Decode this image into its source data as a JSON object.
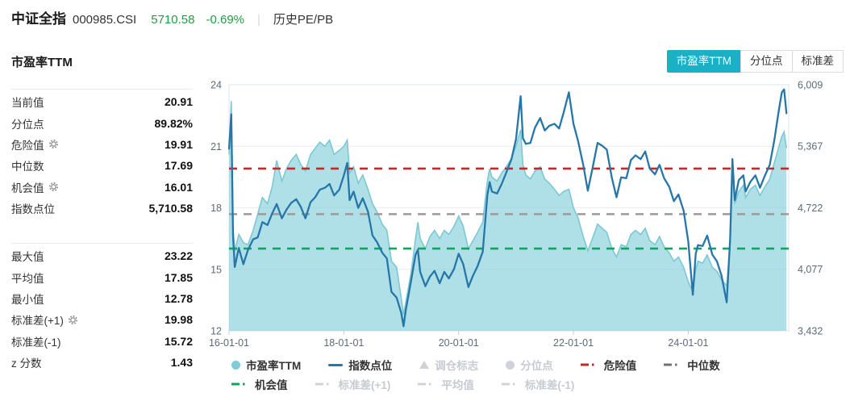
{
  "header": {
    "name": "中证全指",
    "code": "000985.CSI",
    "price": "5710.58",
    "change": "-0.69%",
    "separator": "|",
    "section": "历史PE/PB"
  },
  "tabs": [
    {
      "label": "市盈率TTM",
      "name": "pe-ttm",
      "active": true
    },
    {
      "label": "分位点",
      "name": "percentile",
      "active": false
    },
    {
      "label": "标准差",
      "name": "std-dev",
      "active": false
    }
  ],
  "panel": {
    "title": "市盈率TTM",
    "group1": [
      {
        "name": "current-value",
        "label": "当前值",
        "value": "20.91",
        "gear": false
      },
      {
        "name": "percentile",
        "label": "分位点",
        "value": "89.82%",
        "gear": false
      },
      {
        "name": "danger-value",
        "label": "危险值",
        "value": "19.91",
        "gear": true
      },
      {
        "name": "median",
        "label": "中位数",
        "value": "17.69",
        "gear": false
      },
      {
        "name": "opportunity-value",
        "label": "机会值",
        "value": "16.01",
        "gear": true
      },
      {
        "name": "index-points",
        "label": "指数点位",
        "value": "5,710.58",
        "gear": false
      }
    ],
    "group2": [
      {
        "name": "max-value",
        "label": "最大值",
        "value": "23.22",
        "gear": false
      },
      {
        "name": "mean-value",
        "label": "平均值",
        "value": "17.85",
        "gear": false
      },
      {
        "name": "min-value",
        "label": "最小值",
        "value": "12.78",
        "gear": false
      },
      {
        "name": "std-plus-1",
        "label": "标准差(+1)",
        "value": "19.98",
        "gear": true
      },
      {
        "name": "std-minus-1",
        "label": "标准差(-1)",
        "value": "15.72",
        "gear": false
      },
      {
        "name": "z-score",
        "label": "z 分数",
        "value": "1.43",
        "gear": false
      }
    ]
  },
  "legend": {
    "rows": [
      [
        {
          "label": "市盈率TTM",
          "name": "pe-ttm",
          "marker": "circle",
          "color": "#7fccd6",
          "enabled": true
        },
        {
          "label": "指数点位",
          "name": "index-points",
          "marker": "line",
          "color": "#2676a8",
          "enabled": true
        },
        {
          "label": "调仓标志",
          "name": "rebalance-marker",
          "marker": "triangle",
          "color": "#cfd3d9",
          "enabled": false
        },
        {
          "label": "分位点",
          "name": "percentile",
          "marker": "circle",
          "color": "#cfd3d9",
          "enabled": false
        },
        {
          "label": "危险值",
          "name": "danger-value",
          "marker": "dashdot",
          "color": "#c5282c",
          "enabled": true
        },
        {
          "label": "中位数",
          "name": "median",
          "marker": "dashdot",
          "color": "#6f7479",
          "enabled": true
        }
      ],
      [
        {
          "label": "机会值",
          "name": "opportunity-value",
          "marker": "dashdot",
          "color": "#13a45f",
          "enabled": true
        },
        {
          "label": "标准差(+1)",
          "name": "std-plus-1",
          "marker": "dashdot",
          "color": "#cfd3d9",
          "enabled": false
        },
        {
          "label": "平均值",
          "name": "mean-value",
          "marker": "dashdot",
          "color": "#cfd3d9",
          "enabled": false
        },
        {
          "label": "标准差(-1)",
          "name": "std-minus-1",
          "marker": "dashdot",
          "color": "#cfd3d9",
          "enabled": false
        }
      ]
    ]
  },
  "colors": {
    "accent_teal": "#1ab0c5",
    "quote_green": "#1f9d40",
    "area_fill": "#7ecdd8",
    "area_line": "#7cc8d3",
    "index_line": "#2676a8",
    "danger_red": "#c5282c",
    "median_gray": "#9b9b9b",
    "opportunity_green": "#13a45f",
    "grid": "#ececec",
    "plot_border": "#dbe6f1",
    "axis_text": "#5d6b78"
  },
  "chart_data": {
    "type": "area",
    "title": "市盈率TTM",
    "x_range": [
      2016.0,
      2025.75
    ],
    "x_ticks": [
      {
        "t": 2016,
        "label": "16-01-01"
      },
      {
        "t": 2018,
        "label": "18-01-01"
      },
      {
        "t": 2020,
        "label": "20-01-01"
      },
      {
        "t": 2022,
        "label": "22-01-01"
      },
      {
        "t": 2024,
        "label": "24-01-01"
      }
    ],
    "left_axis": {
      "range": [
        12,
        24
      ],
      "ticks": [
        24,
        21,
        18,
        15,
        12
      ]
    },
    "right_axis": {
      "range": [
        3432,
        6009
      ],
      "ticks": [
        {
          "v": 6009,
          "label": "6,009"
        },
        {
          "v": 5367,
          "label": "5,367"
        },
        {
          "v": 4722,
          "label": "4,722"
        },
        {
          "v": 4077,
          "label": "4,077"
        },
        {
          "v": 3432,
          "label": "3,432"
        }
      ]
    },
    "reference_lines": [
      {
        "name": "危险值",
        "value": 19.91,
        "color": "#c5282c"
      },
      {
        "name": "中位数",
        "value": 17.69,
        "color": "#9b9b9b"
      },
      {
        "name": "机会值",
        "value": 16.01,
        "color": "#13a45f"
      }
    ],
    "x": [
      2016.0,
      2016.04,
      2016.07,
      2016.1,
      2016.17,
      2016.25,
      2016.33,
      2016.42,
      2016.5,
      2016.58,
      2016.67,
      2016.75,
      2016.83,
      2016.92,
      2017.0,
      2017.08,
      2017.17,
      2017.25,
      2017.33,
      2017.42,
      2017.5,
      2017.58,
      2017.67,
      2017.75,
      2017.83,
      2017.92,
      2018.0,
      2018.06,
      2018.1,
      2018.17,
      2018.25,
      2018.33,
      2018.42,
      2018.5,
      2018.58,
      2018.67,
      2018.75,
      2018.83,
      2018.92,
      2019.0,
      2019.04,
      2019.08,
      2019.17,
      2019.25,
      2019.29,
      2019.33,
      2019.42,
      2019.5,
      2019.58,
      2019.67,
      2019.75,
      2019.83,
      2019.92,
      2020.0,
      2020.08,
      2020.17,
      2020.25,
      2020.33,
      2020.42,
      2020.5,
      2020.54,
      2020.58,
      2020.67,
      2020.75,
      2020.83,
      2020.92,
      2021.0,
      2021.08,
      2021.12,
      2021.17,
      2021.25,
      2021.33,
      2021.42,
      2021.5,
      2021.58,
      2021.67,
      2021.75,
      2021.83,
      2021.92,
      2022.0,
      2022.08,
      2022.17,
      2022.25,
      2022.33,
      2022.42,
      2022.5,
      2022.58,
      2022.67,
      2022.75,
      2022.83,
      2022.92,
      2023.0,
      2023.08,
      2023.17,
      2023.25,
      2023.33,
      2023.42,
      2023.5,
      2023.58,
      2023.67,
      2023.75,
      2023.83,
      2023.92,
      2024.0,
      2024.08,
      2024.13,
      2024.17,
      2024.25,
      2024.33,
      2024.42,
      2024.5,
      2024.58,
      2024.67,
      2024.73,
      2024.77,
      2024.81,
      2024.88,
      2024.96,
      2025.0,
      2025.08,
      2025.17,
      2025.25,
      2025.33,
      2025.42,
      2025.5,
      2025.58,
      2025.63,
      2025.67,
      2025.71
    ],
    "series": [
      {
        "name": "市盈率TTM",
        "type": "area",
        "axis": "left",
        "values": [
          20.6,
          23.2,
          17.0,
          15.9,
          16.7,
          16.3,
          16.2,
          16.9,
          17.7,
          18.5,
          18.2,
          19.0,
          20.3,
          19.3,
          19.9,
          20.3,
          20.6,
          20.1,
          19.8,
          20.6,
          20.9,
          21.2,
          21.0,
          21.3,
          20.6,
          20.8,
          21.0,
          21.3,
          19.7,
          20.0,
          19.2,
          19.6,
          18.9,
          18.2,
          17.8,
          17.2,
          16.9,
          15.4,
          15.1,
          13.6,
          12.8,
          13.4,
          14.8,
          16.5,
          17.3,
          16.5,
          16.0,
          16.6,
          16.9,
          16.5,
          16.9,
          16.7,
          17.1,
          17.6,
          17.1,
          16.0,
          16.4,
          16.8,
          17.3,
          19.3,
          19.9,
          19.5,
          19.3,
          19.7,
          20.0,
          20.4,
          21.0,
          21.8,
          20.1,
          19.6,
          19.4,
          19.8,
          20.0,
          19.4,
          19.2,
          18.9,
          18.6,
          18.8,
          18.9,
          18.0,
          17.5,
          16.6,
          15.9,
          16.5,
          17.2,
          17.0,
          16.8,
          16.0,
          15.6,
          16.2,
          16.1,
          16.7,
          16.9,
          16.7,
          17.0,
          16.4,
          16.2,
          16.6,
          16.1,
          15.8,
          15.4,
          15.6,
          15.1,
          14.4,
          13.9,
          15.0,
          15.4,
          15.3,
          15.7,
          15.1,
          14.9,
          14.5,
          14.2,
          16.2,
          19.8,
          18.2,
          18.8,
          19.1,
          18.5,
          18.9,
          19.1,
          18.6,
          19.0,
          19.4,
          20.2,
          21.0,
          21.5,
          21.7,
          20.91
        ]
      },
      {
        "name": "指数点位",
        "type": "line",
        "axis": "right",
        "values": [
          5340,
          5700,
          4420,
          4100,
          4300,
          4130,
          4280,
          4390,
          4410,
          4570,
          4540,
          4660,
          4760,
          4610,
          4700,
          4770,
          4810,
          4730,
          4610,
          4780,
          4830,
          4910,
          4930,
          4970,
          4850,
          4910,
          5060,
          5190,
          4800,
          4890,
          4720,
          4820,
          4680,
          4430,
          4360,
          4250,
          4190,
          3840,
          3780,
          3620,
          3480,
          3650,
          3950,
          4230,
          4280,
          4050,
          3900,
          4000,
          4060,
          3930,
          4050,
          3980,
          4080,
          4240,
          4130,
          3890,
          4010,
          4110,
          4260,
          4850,
          4990,
          4890,
          4870,
          4970,
          5090,
          5230,
          5440,
          5890,
          5450,
          5390,
          5400,
          5560,
          5660,
          5530,
          5580,
          5600,
          5550,
          5720,
          5930,
          5600,
          5420,
          5170,
          4900,
          5130,
          5400,
          5370,
          5330,
          5030,
          4830,
          5040,
          5030,
          5220,
          5270,
          5230,
          5310,
          5130,
          5070,
          5170,
          5030,
          4940,
          4790,
          4860,
          4690,
          4370,
          3810,
          4240,
          4330,
          4320,
          4430,
          4230,
          4160,
          4010,
          3730,
          4400,
          5230,
          4800,
          5010,
          5060,
          4890,
          4990,
          5060,
          4930,
          5050,
          5170,
          5430,
          5750,
          5930,
          5960,
          5710.58
        ]
      }
    ]
  }
}
